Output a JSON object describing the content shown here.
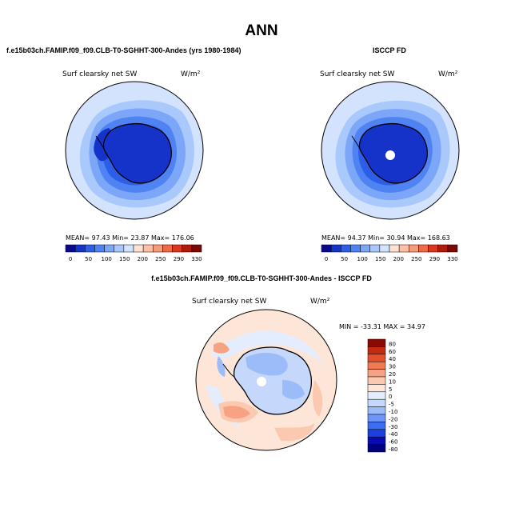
{
  "page": {
    "season": "ANN",
    "row1_left_title": "f.e15b03ch.FAMIP.f09_f09.CLB-T0-SGHHT-300-Andes (yrs 1980-1984)",
    "row1_right_title": "ISCCP FD",
    "diff_title": "f.e15b03ch.FAMIP.f09_f09.CLB-T0-SGHHT-300-Andes - ISCCP FD"
  },
  "colors": {
    "seq_scale": [
      "#0a0a8c",
      "#1533c8",
      "#2c5ee8",
      "#4f82f2",
      "#7ca6f7",
      "#a9c8fb",
      "#d3e3fd",
      "#fde2d4",
      "#fbc0a6",
      "#f79c78",
      "#ef6b48",
      "#d9381c",
      "#b01a0a",
      "#7a0a04"
    ],
    "diff_scale": [
      "#00007a",
      "#0a0ab4",
      "#1c3fe0",
      "#3d6df0",
      "#6e96f6",
      "#9cbcf9",
      "#c5d8fc",
      "#e3edfe",
      "#fde6d8",
      "#fbc8b0",
      "#f7a282",
      "#f07a54",
      "#e2502c",
      "#c52a12",
      "#8c0a00"
    ]
  },
  "chart_data": [
    {
      "type": "heatmap",
      "panel": "model",
      "variable_label": "Surf clearsky net SW",
      "units": "W/m²",
      "stats": {
        "mean": 97.43,
        "min": 23.87,
        "max": 176.06
      },
      "stats_text": "MEAN=  97.43   Min=  23.87   Max=  176.06",
      "colorbar_ticks": [
        "0",
        "50",
        "100",
        "150",
        "200",
        "250",
        "290",
        "330"
      ],
      "projection": "south-polar-stereographic"
    },
    {
      "type": "heatmap",
      "panel": "obs",
      "variable_label": "Surf clearsky net SW",
      "units": "W/m²",
      "stats": {
        "mean": 94.37,
        "min": 30.94,
        "max": 168.63
      },
      "stats_text": "MEAN=  94.37   Min=  30.94   Max=  168.63",
      "colorbar_ticks": [
        "0",
        "50",
        "100",
        "150",
        "200",
        "250",
        "290",
        "330"
      ],
      "projection": "south-polar-stereographic"
    },
    {
      "type": "heatmap",
      "panel": "difference",
      "variable_label": "Surf clearsky net SW",
      "units": "W/m²",
      "stats": {
        "min": -33.31,
        "max": 34.97
      },
      "stats_text": "MIN = -33.31  MAX =  34.97",
      "colorbar_levels": [
        "80",
        "60",
        "40",
        "30",
        "20",
        "10",
        "5",
        "0",
        "-5",
        "-10",
        "-20",
        "-30",
        "-40",
        "-60",
        "-80"
      ],
      "projection": "south-polar-stereographic"
    }
  ]
}
